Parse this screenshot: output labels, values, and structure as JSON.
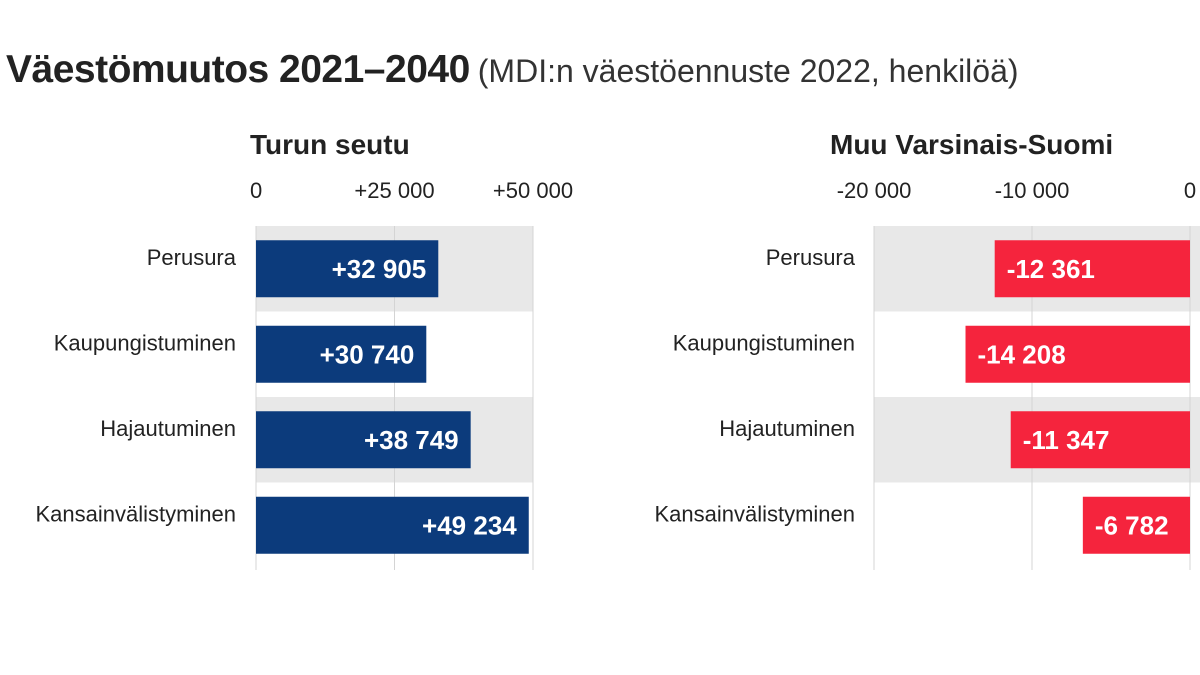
{
  "header": {
    "title": "Väestömuutos 2021–2040",
    "subtitle": "(MDI:n väestöennuste 2022, henkilöä)"
  },
  "chart_data": [
    {
      "type": "bar",
      "orientation": "horizontal",
      "title": "Turun seutu",
      "categories": [
        "Perusura",
        "Kaupungistuminen",
        "Hajautuminen",
        "Kansainvälistyminen"
      ],
      "values": [
        32905,
        30740,
        38749,
        49234
      ],
      "value_labels": [
        "+32 905",
        "+30 740",
        "+38 749",
        "+49 234"
      ],
      "xlim": [
        0,
        50000
      ],
      "ticks": [
        0,
        25000,
        50000
      ],
      "tick_labels": [
        "0",
        "+25 000",
        "+50 000"
      ],
      "bar_color": "#0c3b7c",
      "band_color": "#e8e8e8",
      "grid": true
    },
    {
      "type": "bar",
      "orientation": "horizontal",
      "title": "Muu Varsinais-Suomi",
      "categories": [
        "Perusura",
        "Kaupungistuminen",
        "Hajautuminen",
        "Kansainvälistyminen"
      ],
      "values": [
        -12361,
        -14208,
        -11347,
        -6782
      ],
      "value_labels": [
        "-12 361",
        "-14 208",
        "-11 347",
        "-6 782"
      ],
      "xlim": [
        -20000,
        0
      ],
      "ticks": [
        -20000,
        -10000,
        0
      ],
      "tick_labels": [
        "-20 000",
        "-10 000",
        "0"
      ],
      "bar_color": "#f5243d",
      "band_color": "#e8e8e8",
      "grid": true
    }
  ]
}
